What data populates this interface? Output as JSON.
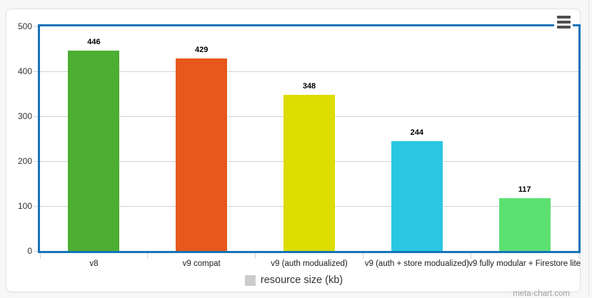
{
  "chart_data": {
    "type": "bar",
    "categories": [
      "v8",
      "v9 compat",
      "v9 (auth modualized)",
      "v9 (auth + store modualized)",
      "v9 fully modular + Firestore lite"
    ],
    "series": [
      {
        "name": "resource size (kb)",
        "values": [
          446,
          429,
          348,
          244,
          117
        ],
        "bar_colors": [
          "#4cae32",
          "#e8581c",
          "#dddd00",
          "#29c7e2",
          "#5de072"
        ]
      }
    ],
    "title": "",
    "xlabel": "",
    "ylabel": "",
    "ylim": [
      0,
      500
    ],
    "yticks": [
      0,
      100,
      200,
      300,
      400,
      500
    ],
    "grid": true,
    "legend_position": "bottom-center",
    "data_labels_shown": true
  },
  "legend": {
    "label": "resource size (kb)",
    "swatch_color": "#cccccc"
  },
  "watermark": {
    "text": "meta-chart.com"
  },
  "menu": {
    "icon": "hamburger-menu-icon"
  },
  "colors": {
    "plot_border": "#1574b8",
    "grid": "#d2d2d2",
    "card_background": "#ffffff",
    "page_background": "#f7f7f8",
    "value_label": "#000000",
    "axis_label": "#333333"
  }
}
